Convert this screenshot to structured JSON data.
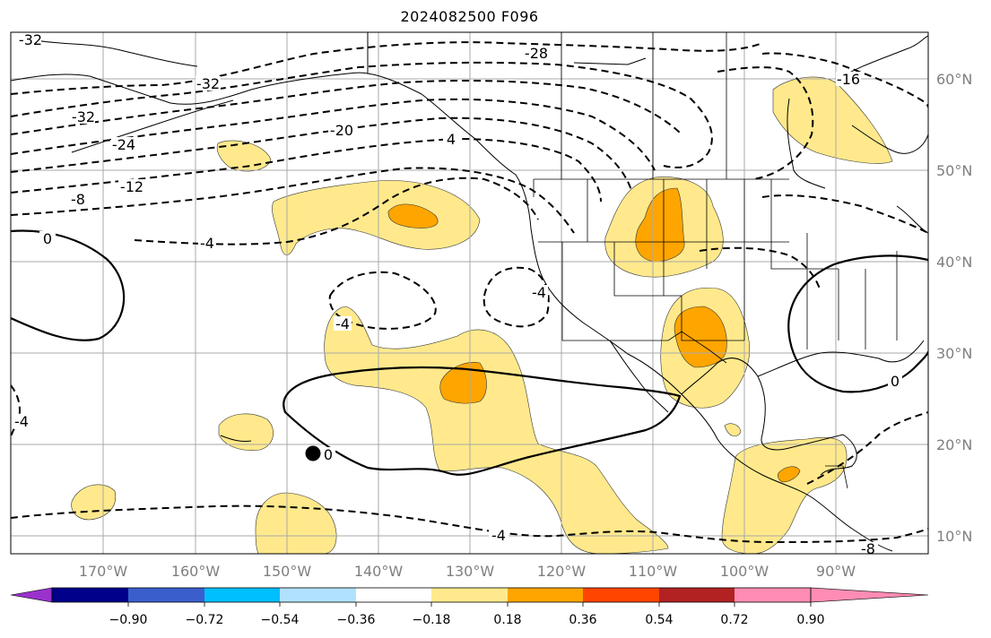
{
  "title": "2024082500 F096",
  "map": {
    "lat_labels": [
      "60°N",
      "50°N",
      "40°N",
      "30°N",
      "20°N",
      "10°N"
    ],
    "lon_labels": [
      "170°W",
      "160°W",
      "150°W",
      "140°W",
      "130°W",
      "120°W",
      "110°W",
      "100°W",
      "90°W"
    ],
    "contour_labels": [
      "-32",
      "-32",
      "-32",
      "-28",
      "-24",
      "-20",
      "-16",
      "-12",
      "-8",
      "-8",
      "-4",
      "-4",
      "-4",
      "-4",
      "-4",
      "0",
      "0",
      "0",
      "4"
    ],
    "marker": "station-dot"
  },
  "colorbar": {
    "ticks": [
      "−0.90",
      "−0.72",
      "−0.54",
      "−0.36",
      "−0.18",
      "0.18",
      "0.36",
      "0.54",
      "0.72",
      "0.90"
    ],
    "colors": [
      "#9932cc",
      "#00008b",
      "#3a5fcd",
      "#00bfff",
      "#b0e2ff",
      "#ffffff",
      "#ffe98c",
      "#ffa500",
      "#ff4500",
      "#b22222",
      "#ff8cb4"
    ]
  }
}
